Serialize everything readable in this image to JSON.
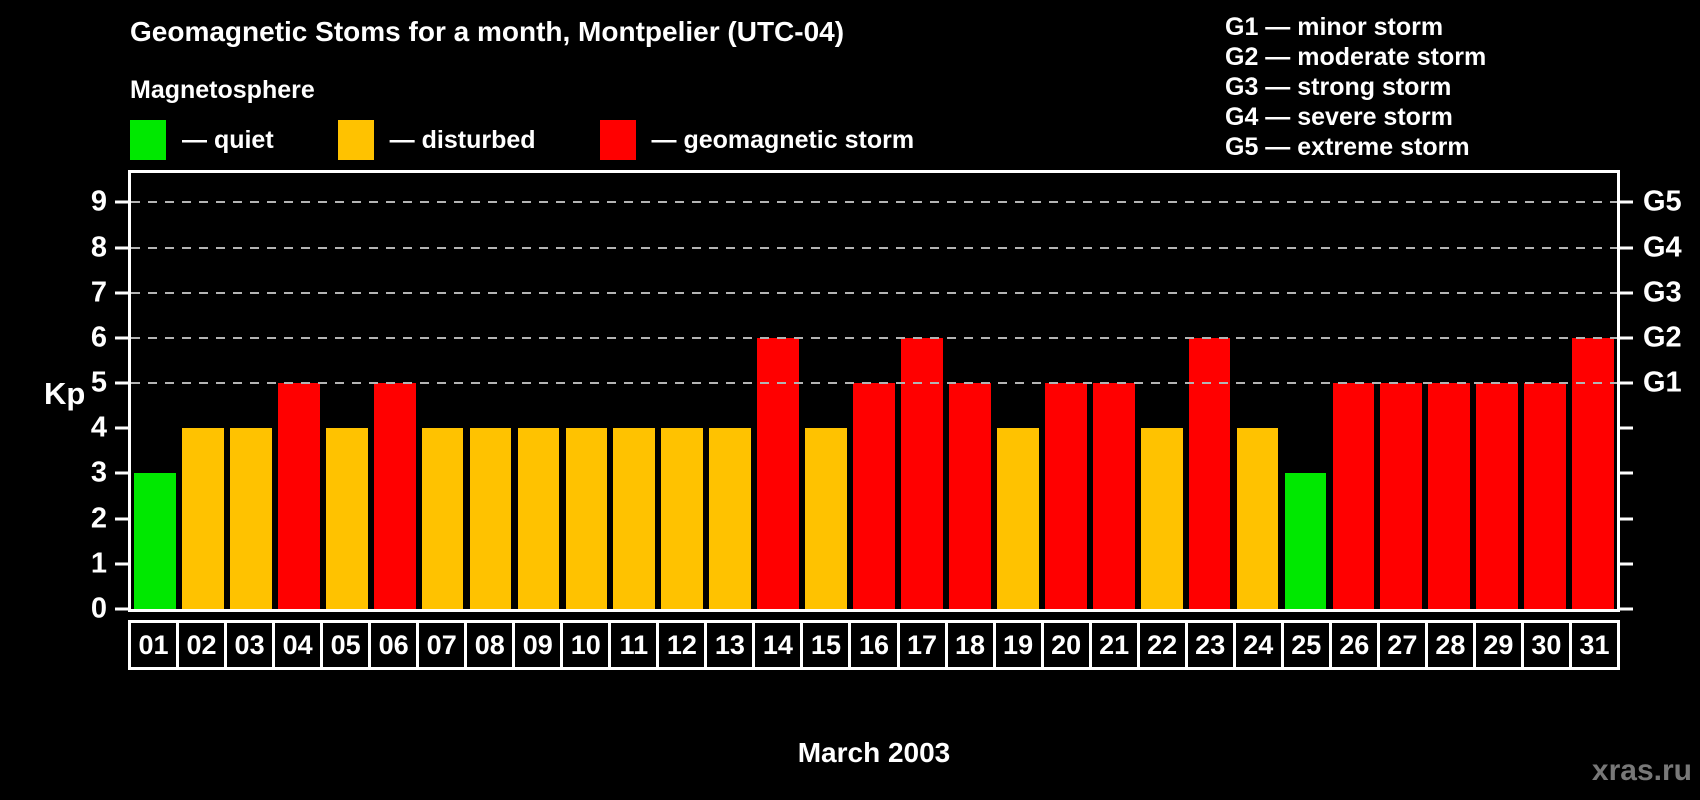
{
  "page": {
    "title": "Geomagnetic Stoms for a month, Montpelier (UTC-04)",
    "watermark": "xras.ru"
  },
  "legend": {
    "heading": "Magnetosphere",
    "items": [
      {
        "key": "quiet",
        "label": "— quiet",
        "color": "#00E800"
      },
      {
        "key": "disturbed",
        "label": "— disturbed",
        "color": "#FFC200"
      },
      {
        "key": "storm",
        "label": "— geomagnetic storm",
        "color": "#FF0000"
      }
    ]
  },
  "storm_scale": [
    "G1 — minor storm",
    "G2 — moderate storm",
    "G3 — strong storm",
    "G4 — severe storm",
    "G5 — extreme storm"
  ],
  "chart_data": {
    "type": "bar",
    "title": "Geomagnetic Stoms for a month, Montpelier (UTC-04)",
    "xlabel": "March 2003",
    "ylabel": "Kp",
    "ylim": [
      0,
      9.65
    ],
    "yticks": [
      0,
      1,
      2,
      3,
      4,
      5,
      6,
      7,
      8,
      9
    ],
    "gridlines_at": [
      5,
      6,
      7,
      8,
      9
    ],
    "grid": "dashed horizontal lines at storm levels G1–G5 only",
    "legend_position": "top-left",
    "background": "#000000",
    "right_axis": [
      {
        "label": "G1",
        "kp": 5
      },
      {
        "label": "G2",
        "kp": 6
      },
      {
        "label": "G3",
        "kp": 7
      },
      {
        "label": "G4",
        "kp": 8
      },
      {
        "label": "G5",
        "kp": 9
      }
    ],
    "categories": [
      "01",
      "02",
      "03",
      "04",
      "05",
      "06",
      "07",
      "08",
      "09",
      "10",
      "11",
      "12",
      "13",
      "14",
      "15",
      "16",
      "17",
      "18",
      "19",
      "20",
      "21",
      "22",
      "23",
      "24",
      "25",
      "26",
      "27",
      "28",
      "29",
      "30",
      "31"
    ],
    "values": [
      3,
      4,
      4,
      5,
      4,
      5,
      4,
      4,
      4,
      4,
      4,
      4,
      4,
      6,
      4,
      5,
      6,
      5,
      4,
      5,
      5,
      4,
      6,
      4,
      3,
      5,
      5,
      5,
      5,
      5,
      6
    ],
    "statuses": [
      "quiet",
      "disturbed",
      "disturbed",
      "storm",
      "disturbed",
      "storm",
      "disturbed",
      "disturbed",
      "disturbed",
      "disturbed",
      "disturbed",
      "disturbed",
      "disturbed",
      "storm",
      "disturbed",
      "storm",
      "storm",
      "storm",
      "disturbed",
      "storm",
      "storm",
      "disturbed",
      "storm",
      "disturbed",
      "quiet",
      "storm",
      "storm",
      "storm",
      "storm",
      "storm",
      "storm"
    ]
  }
}
